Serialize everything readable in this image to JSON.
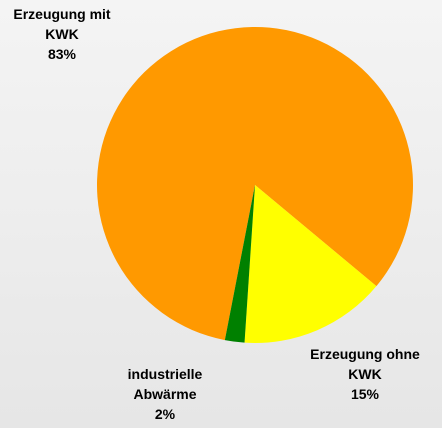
{
  "chart_data": {
    "type": "pie",
    "categories": [
      "Erzeugung mit KWK",
      "Erzeugung ohne KWK",
      "industrielle Abwärme"
    ],
    "values": [
      83,
      15,
      2
    ],
    "value_labels": [
      "83%",
      "15%",
      "2%"
    ],
    "colors": [
      "#ff9900",
      "#ffff00",
      "#008000"
    ]
  }
}
